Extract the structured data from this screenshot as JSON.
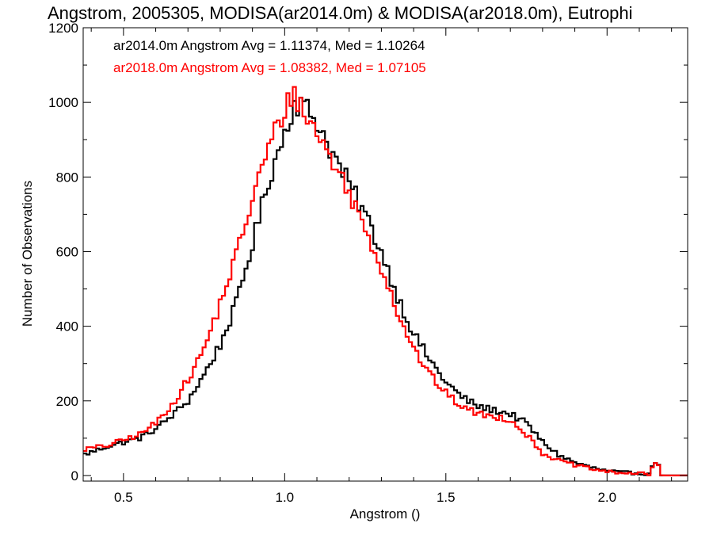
{
  "chart_data": {
    "type": "line",
    "style": "step-histogram",
    "title": "Angstrom, 2005305, MODISA(ar2014.0m) & MODISA(ar2018.0m), Eutrophi",
    "xlabel": "Angstrom ()",
    "ylabel": "Number of Observations",
    "xlim": [
      0.375,
      2.25
    ],
    "ylim": [
      -15,
      1200
    ],
    "xticks": [
      0.5,
      1.0,
      1.5,
      2.0
    ],
    "xtick_labels": [
      "0.5",
      "1.0",
      "1.5",
      "2.0"
    ],
    "yticks": [
      0,
      200,
      400,
      600,
      800,
      1000,
      1200
    ],
    "ytick_labels": [
      "0",
      "200",
      "400",
      "600",
      "800",
      "1000",
      "1200"
    ],
    "grid": false,
    "legend_position": "top-left",
    "bin_width": 0.01,
    "series": [
      {
        "name": "ar2014.0m",
        "color": "#000000",
        "legend_text": "ar2014.0m Angstrom Avg = 1.11374, Med = 1.10264",
        "points": [
          [
            0.375,
            55
          ],
          [
            0.45,
            78
          ],
          [
            0.55,
            100
          ],
          [
            0.6,
            125
          ],
          [
            0.65,
            160
          ],
          [
            0.7,
            200
          ],
          [
            0.75,
            270
          ],
          [
            0.8,
            350
          ],
          [
            0.85,
            460
          ],
          [
            0.9,
            620
          ],
          [
            0.95,
            790
          ],
          [
            1.0,
            920
          ],
          [
            1.03,
            1000
          ],
          [
            1.06,
            990
          ],
          [
            1.1,
            950
          ],
          [
            1.15,
            860
          ],
          [
            1.2,
            780
          ],
          [
            1.25,
            700
          ],
          [
            1.3,
            600
          ],
          [
            1.35,
            480
          ],
          [
            1.4,
            380
          ],
          [
            1.45,
            310
          ],
          [
            1.5,
            250
          ],
          [
            1.55,
            210
          ],
          [
            1.6,
            185
          ],
          [
            1.65,
            175
          ],
          [
            1.7,
            165
          ],
          [
            1.75,
            140
          ],
          [
            1.8,
            90
          ],
          [
            1.85,
            55
          ],
          [
            1.9,
            35
          ],
          [
            1.95,
            22
          ],
          [
            2.0,
            12
          ],
          [
            2.05,
            8
          ],
          [
            2.1,
            6
          ],
          [
            2.13,
            5
          ],
          [
            2.155,
            45
          ],
          [
            2.17,
            0
          ],
          [
            2.25,
            0
          ]
        ]
      },
      {
        "name": "ar2018.0m",
        "color": "#ff0000",
        "legend_text": "ar2018.0m Angstrom Avg = 1.08382, Med = 1.07105",
        "points": [
          [
            0.375,
            70
          ],
          [
            0.45,
            80
          ],
          [
            0.55,
            110
          ],
          [
            0.6,
            140
          ],
          [
            0.65,
            190
          ],
          [
            0.7,
            255
          ],
          [
            0.75,
            340
          ],
          [
            0.8,
            460
          ],
          [
            0.85,
            590
          ],
          [
            0.9,
            740
          ],
          [
            0.95,
            880
          ],
          [
            1.0,
            980
          ],
          [
            1.03,
            1030
          ],
          [
            1.06,
            970
          ],
          [
            1.1,
            920
          ],
          [
            1.15,
            840
          ],
          [
            1.2,
            760
          ],
          [
            1.25,
            660
          ],
          [
            1.3,
            560
          ],
          [
            1.35,
            440
          ],
          [
            1.4,
            340
          ],
          [
            1.45,
            270
          ],
          [
            1.5,
            220
          ],
          [
            1.55,
            185
          ],
          [
            1.6,
            165
          ],
          [
            1.65,
            158
          ],
          [
            1.7,
            150
          ],
          [
            1.75,
            110
          ],
          [
            1.8,
            60
          ],
          [
            1.85,
            40
          ],
          [
            1.9,
            28
          ],
          [
            1.95,
            18
          ],
          [
            2.0,
            10
          ],
          [
            2.05,
            7
          ],
          [
            2.1,
            5
          ],
          [
            2.13,
            4
          ],
          [
            2.155,
            40
          ],
          [
            2.17,
            0
          ],
          [
            2.25,
            0
          ]
        ]
      }
    ]
  }
}
